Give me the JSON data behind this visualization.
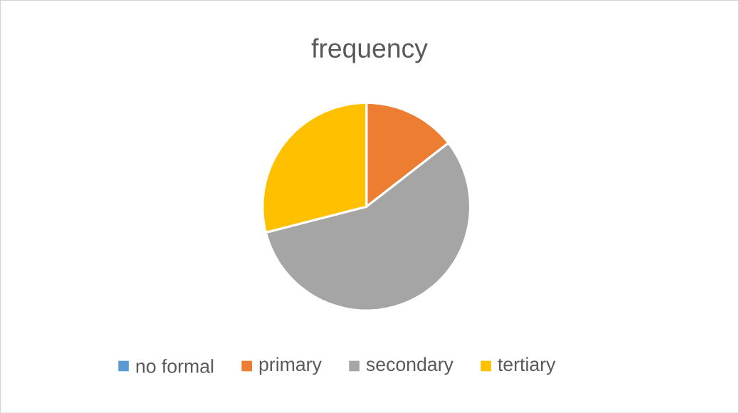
{
  "chart_data": {
    "type": "pie",
    "title": "frequency",
    "categories": [
      "no formal",
      "primary",
      "secondary",
      "tertiary"
    ],
    "values": [
      0,
      14.5,
      56.5,
      29
    ],
    "colors": [
      "#5b9bd5",
      "#ed7d31",
      "#a5a5a5",
      "#ffc000"
    ],
    "legend": "bottom"
  }
}
